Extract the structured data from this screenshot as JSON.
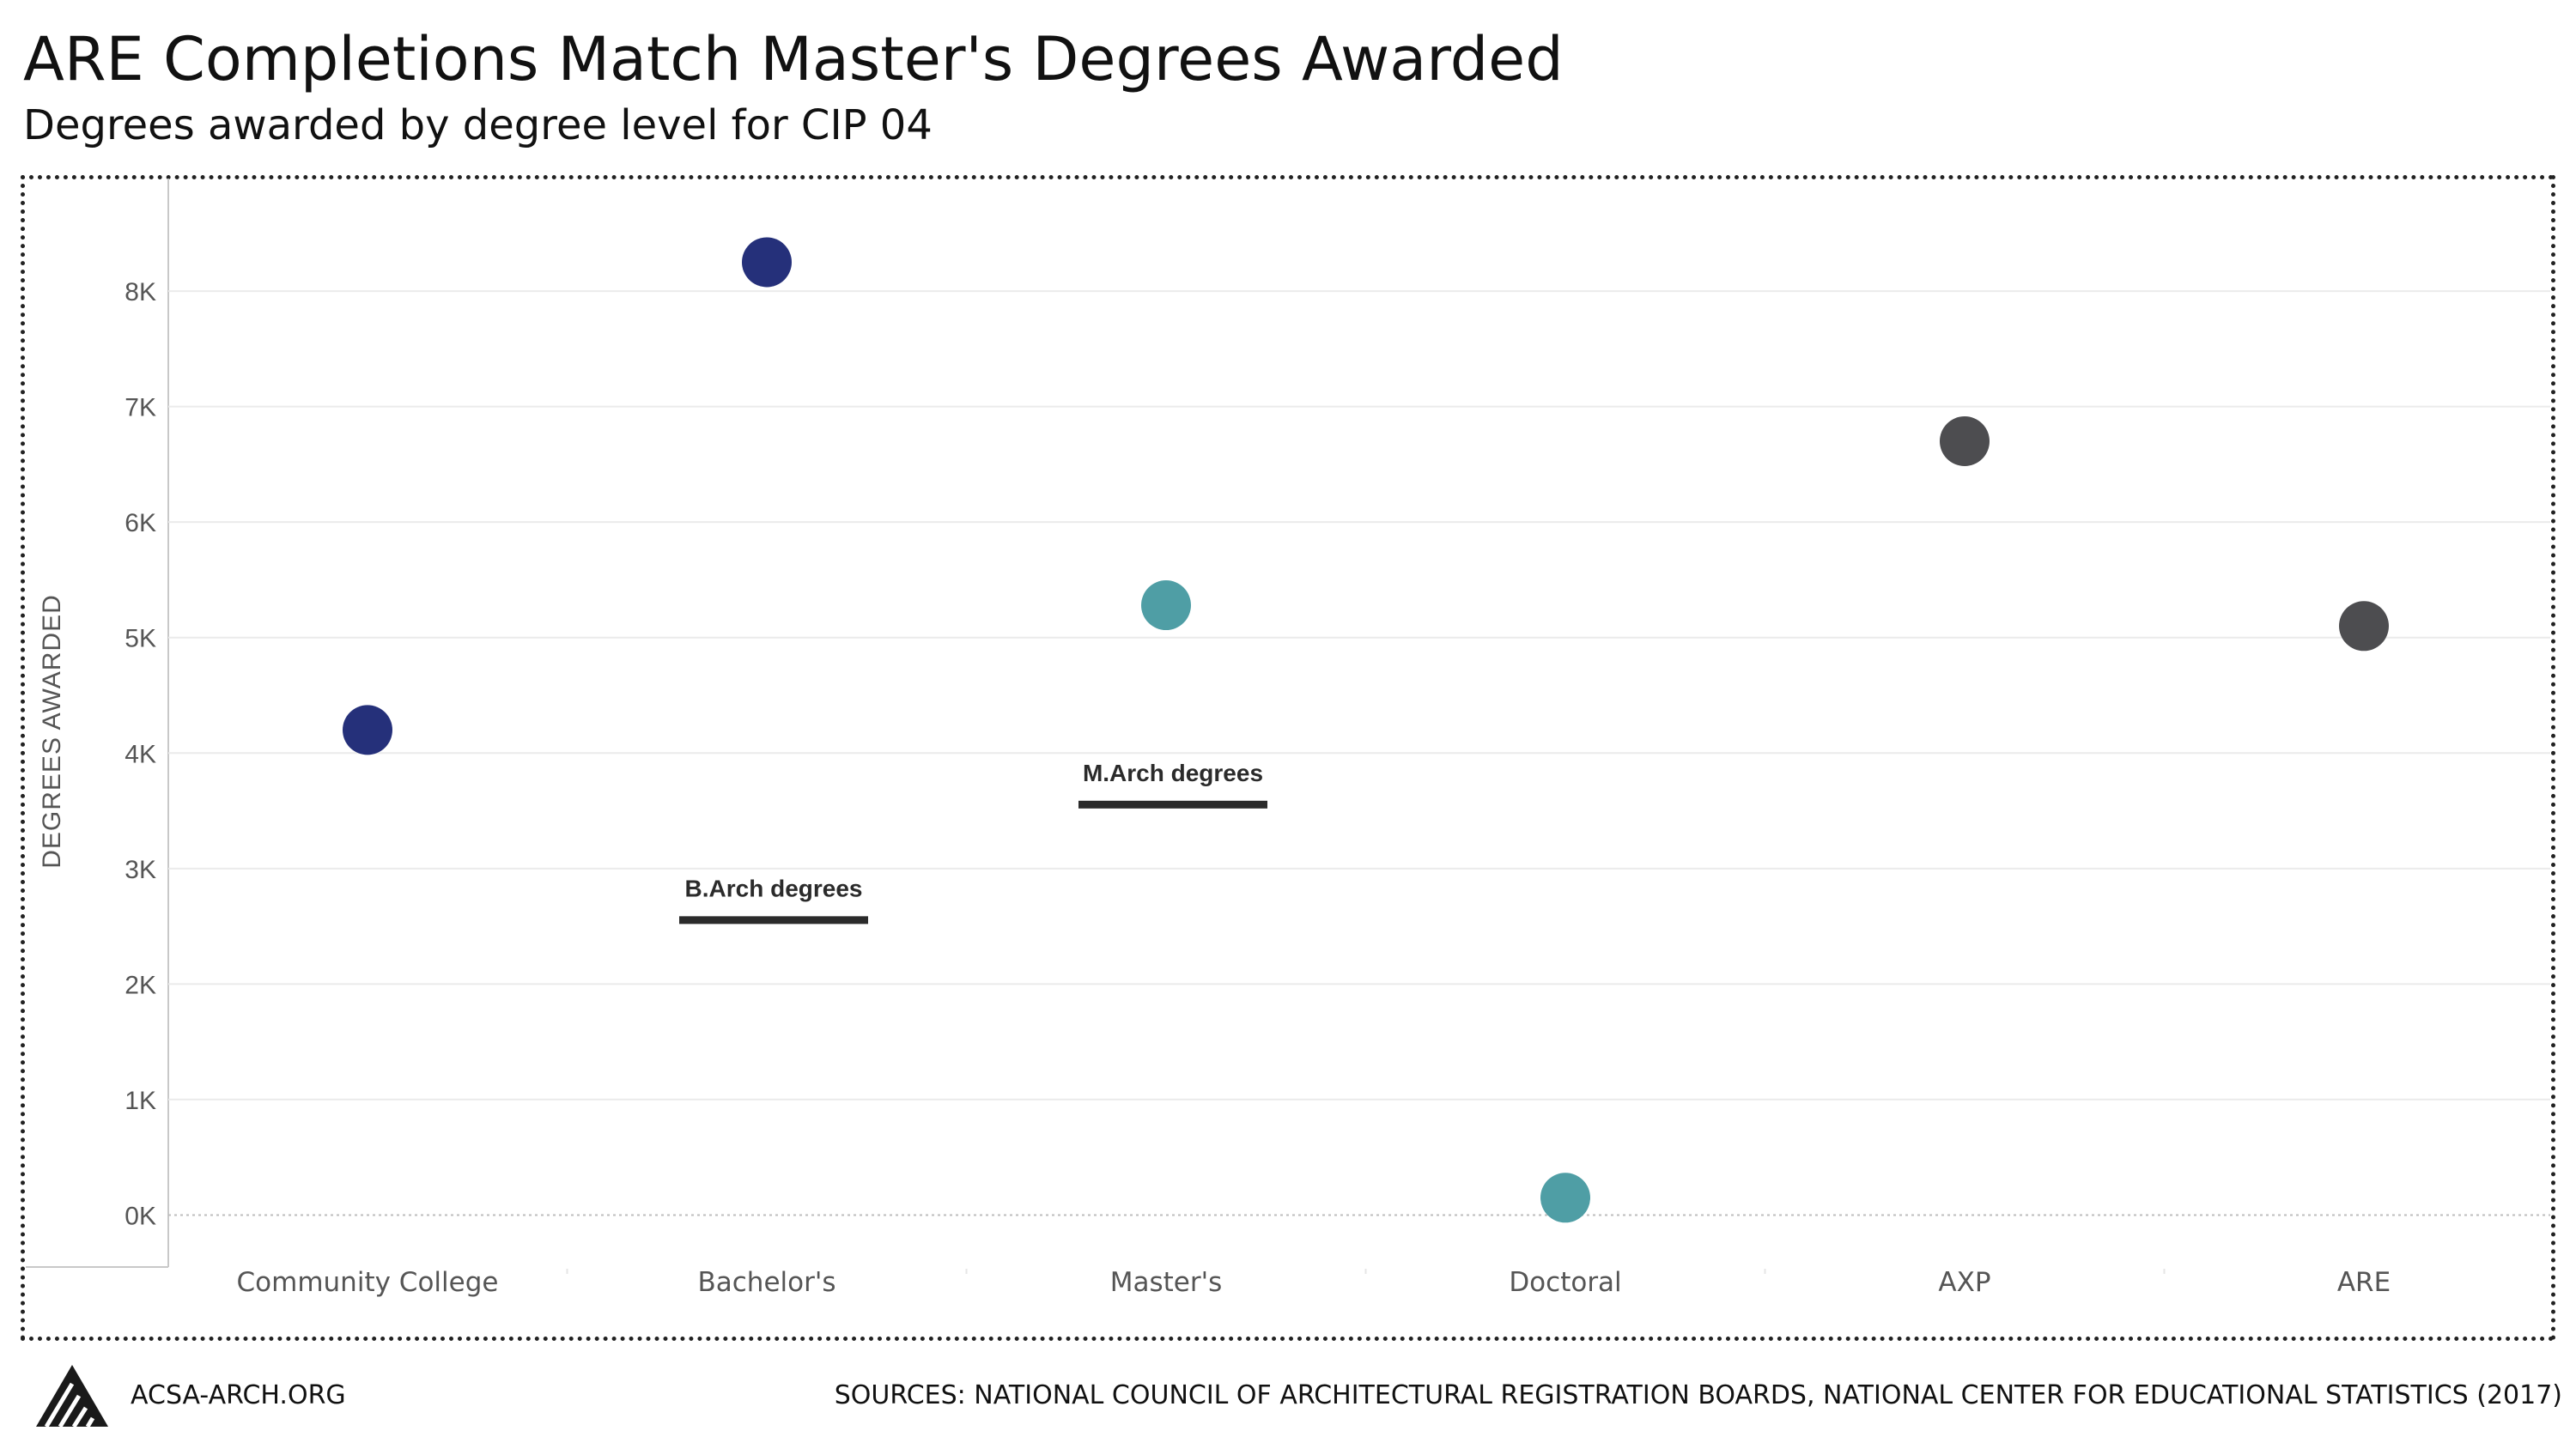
{
  "title": "ARE Completions Match Master's Degrees Awarded",
  "subtitle": "Degrees awarded by degree level for CIP 04",
  "footer": {
    "site": "ACSA-ARCH.ORG",
    "sources": "SOURCES: NATIONAL COUNCIL OF ARCHITECTURAL REGISTRATION BOARDS, NATIONAL CENTER FOR EDUCATIONAL STATISTICS (2017)",
    "logo_icon": "acsa-logo-icon"
  },
  "colors": {
    "navy": "#25307a",
    "teal": "#4f9ea5",
    "gray": "#4d4d50",
    "annotation": "#2b2b2b",
    "grid": "#ebebeb",
    "axis_text": "#555555"
  },
  "chart_data": {
    "type": "scatter",
    "title": "ARE Completions Match Master's Degrees Awarded",
    "subtitle": "Degrees awarded by degree level for CIP 04",
    "xlabel": "",
    "ylabel": "DEGREES AWARDED",
    "categories": [
      "Community College",
      "Bachelor's",
      "Master's",
      "Doctoral",
      "AXP",
      "ARE"
    ],
    "values": [
      4200,
      8250,
      5280,
      150,
      6700,
      5100
    ],
    "point_colors": [
      "navy",
      "navy",
      "teal",
      "teal",
      "gray",
      "gray"
    ],
    "y_ticks": [
      0,
      1000,
      2000,
      3000,
      4000,
      5000,
      6000,
      7000,
      8000
    ],
    "y_tick_labels": [
      "0K",
      "1K",
      "2K",
      "3K",
      "4K",
      "5K",
      "6K",
      "7K",
      "8K"
    ],
    "ylim": [
      -450,
      8900
    ],
    "grid": true,
    "legend": "none",
    "annotations": [
      {
        "text": "B.Arch degrees",
        "category": "Bachelor's",
        "value": 2550
      },
      {
        "text": "M.Arch degrees",
        "category": "Master's",
        "value": 3550
      }
    ]
  }
}
